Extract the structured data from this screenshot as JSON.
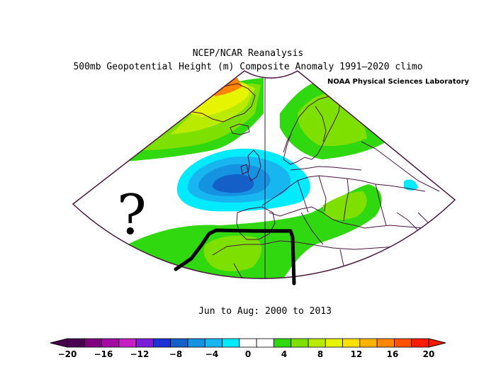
{
  "header": {
    "line1": "NCEP/NCAR Reanalysis",
    "line2": "500mb Geopotential Height (m) Composite Anomaly 1991–2020 climo",
    "source": "NOAA Physical Sciences Laboratory"
  },
  "footer": {
    "period": "Jun to Aug: 2000 to 2013"
  },
  "annotation": {
    "question": "?"
  },
  "colorbar": {
    "tick_labels": [
      "−20",
      "−16",
      "−12",
      "−8",
      "−4",
      "0",
      "4",
      "8",
      "12",
      "16",
      "20"
    ],
    "tick_values": [
      -20,
      -16,
      -12,
      -8,
      -4,
      0,
      4,
      8,
      12,
      16,
      20
    ],
    "colors": [
      "#4b0051",
      "#7f007f",
      "#a30aa3",
      "#c51fc5",
      "#7a1fd6",
      "#1c32d6",
      "#1560c8",
      "#1592e0",
      "#18b6f0",
      "#00ebff",
      "#ffffff",
      "#ffffff",
      "#30d80f",
      "#7ee000",
      "#b9ea00",
      "#e7f400",
      "#ffe000",
      "#ffb300",
      "#ff8600",
      "#ff5200",
      "#ff1a00"
    ]
  },
  "palette": {
    "light_green": "#b9ea00",
    "green": "#30d80f",
    "lime": "#7ee000",
    "yellow": "#e7f400",
    "orange": "#ff8600",
    "light_blue": "#00ebff",
    "sky_blue": "#18b6f0",
    "blue": "#1592e0",
    "dark_blue": "#1560c8",
    "boundary": "#4a1442"
  }
}
